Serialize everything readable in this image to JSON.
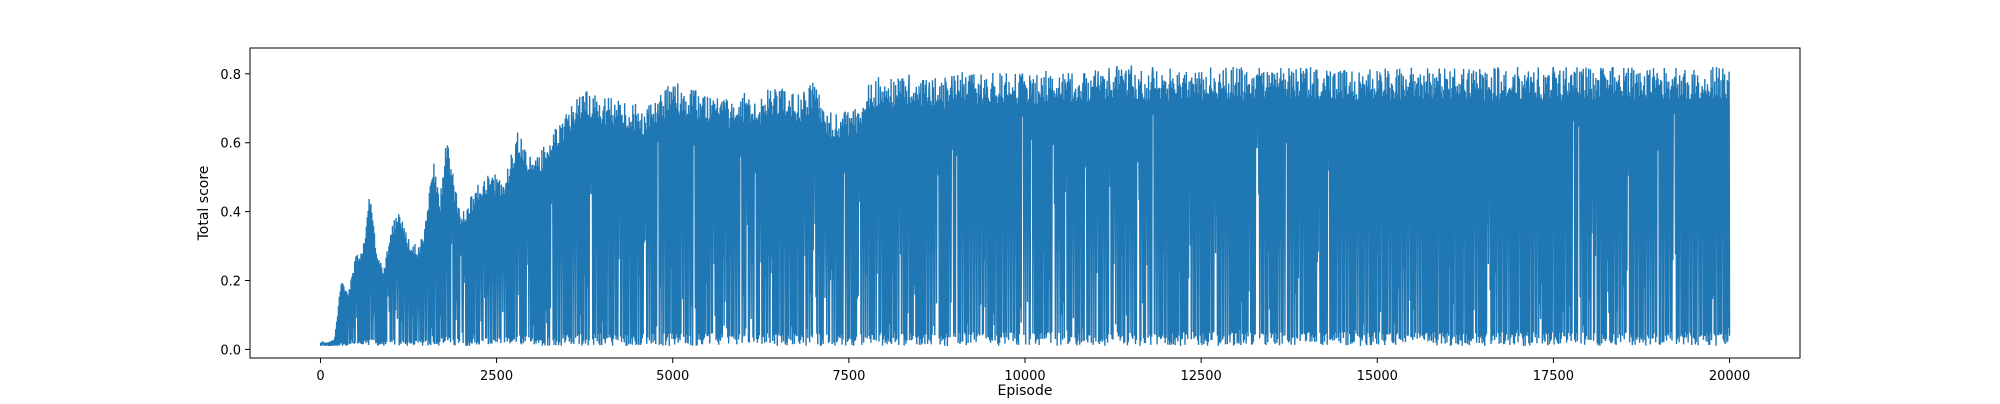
{
  "chart_data": {
    "type": "line",
    "title": "",
    "xlabel": "Episode",
    "ylabel": "Total score",
    "xlim": [
      -1000,
      21000
    ],
    "ylim": [
      -0.025,
      0.875
    ],
    "xticks": [
      0,
      2500,
      5000,
      7500,
      10000,
      12500,
      15000,
      17500,
      20000
    ],
    "yticks": [
      0.0,
      0.2,
      0.4,
      0.6,
      0.8
    ],
    "xtick_labels": [
      "0",
      "2500",
      "5000",
      "7500",
      "10000",
      "12500",
      "15000",
      "17500",
      "20000"
    ],
    "ytick_labels": [
      "0.0",
      "0.2",
      "0.4",
      "0.6",
      "0.8"
    ],
    "grid": false,
    "legend": "none",
    "series": [
      {
        "color": "#1f77b4",
        "x": [
          0,
          100,
          200,
          300,
          400,
          500,
          600,
          700,
          800,
          900,
          1000,
          1100,
          1200,
          1300,
          1400,
          1500,
          1600,
          1700,
          1800,
          1900,
          2000,
          2200,
          2400,
          2600,
          2800,
          3000,
          3200,
          3400,
          3600,
          3800,
          4000,
          4200,
          4400,
          4600,
          4800,
          5000,
          5200,
          5400,
          5600,
          5800,
          6000,
          6200,
          6400,
          6600,
          6800,
          7000,
          7200,
          7400,
          7600,
          7800,
          8000,
          8200,
          8400,
          8600,
          8800,
          9000,
          9200,
          9400,
          9600,
          9800,
          10000,
          10200,
          10400,
          10600,
          10800,
          11000,
          11200,
          11400,
          11600,
          11800,
          12000,
          12200,
          12400,
          12600,
          12800,
          13000,
          13200,
          13400,
          13600,
          13800,
          14000,
          14200,
          14400,
          14600,
          14800,
          15000,
          15200,
          15400,
          15600,
          15800,
          16000,
          16200,
          16400,
          16600,
          16800,
          17000,
          17200,
          17400,
          17600,
          17800,
          18000,
          18200,
          18400,
          18600,
          18800,
          19000,
          19200,
          19400,
          19600,
          19800,
          20000
        ],
        "y_max": [
          0.02,
          0.02,
          0.03,
          0.21,
          0.17,
          0.27,
          0.29,
          0.46,
          0.29,
          0.24,
          0.36,
          0.41,
          0.35,
          0.31,
          0.3,
          0.38,
          0.55,
          0.45,
          0.63,
          0.48,
          0.39,
          0.47,
          0.52,
          0.49,
          0.64,
          0.55,
          0.6,
          0.66,
          0.72,
          0.76,
          0.74,
          0.73,
          0.72,
          0.7,
          0.74,
          0.78,
          0.76,
          0.75,
          0.74,
          0.73,
          0.75,
          0.71,
          0.77,
          0.76,
          0.75,
          0.78,
          0.7,
          0.69,
          0.7,
          0.78,
          0.8,
          0.79,
          0.8,
          0.79,
          0.79,
          0.8,
          0.81,
          0.8,
          0.81,
          0.81,
          0.8,
          0.81,
          0.82,
          0.81,
          0.81,
          0.82,
          0.82,
          0.83,
          0.82,
          0.82,
          0.82,
          0.81,
          0.82,
          0.82,
          0.82,
          0.82,
          0.82,
          0.82,
          0.82,
          0.82,
          0.82,
          0.82,
          0.82,
          0.82,
          0.82,
          0.82,
          0.82,
          0.82,
          0.82,
          0.82,
          0.82,
          0.82,
          0.82,
          0.82,
          0.82,
          0.82,
          0.82,
          0.82,
          0.82,
          0.82,
          0.82,
          0.82,
          0.82,
          0.82,
          0.82,
          0.82,
          0.82,
          0.82,
          0.82,
          0.82,
          0.82
        ],
        "y_min": [
          0.01,
          0.01,
          0.01,
          0.01,
          0.01,
          0.01,
          0.01,
          0.01,
          0.01,
          0.01,
          0.01,
          0.01,
          0.01,
          0.01,
          0.01,
          0.01,
          0.01,
          0.01,
          0.01,
          0.01,
          0.01,
          0.01,
          0.01,
          0.01,
          0.01,
          0.01,
          0.01,
          0.01,
          0.01,
          0.01,
          0.01,
          0.01,
          0.01,
          0.01,
          0.01,
          0.01,
          0.01,
          0.01,
          0.01,
          0.01,
          0.01,
          0.01,
          0.01,
          0.01,
          0.01,
          0.01,
          0.01,
          0.01,
          0.01,
          0.01,
          0.01,
          0.01,
          0.01,
          0.01,
          0.01,
          0.01,
          0.01,
          0.01,
          0.01,
          0.01,
          0.01,
          0.01,
          0.01,
          0.01,
          0.01,
          0.01,
          0.01,
          0.01,
          0.01,
          0.01,
          0.01,
          0.01,
          0.01,
          0.01,
          0.01,
          0.01,
          0.01,
          0.01,
          0.01,
          0.01,
          0.01,
          0.01,
          0.01,
          0.01,
          0.01,
          0.01,
          0.01,
          0.01,
          0.01,
          0.01,
          0.01,
          0.01,
          0.01,
          0.01,
          0.01,
          0.01,
          0.01,
          0.01,
          0.01,
          0.01,
          0.01,
          0.01,
          0.01,
          0.01,
          0.01,
          0.01,
          0.01,
          0.01,
          0.01,
          0.01,
          0.01
        ]
      }
    ]
  }
}
